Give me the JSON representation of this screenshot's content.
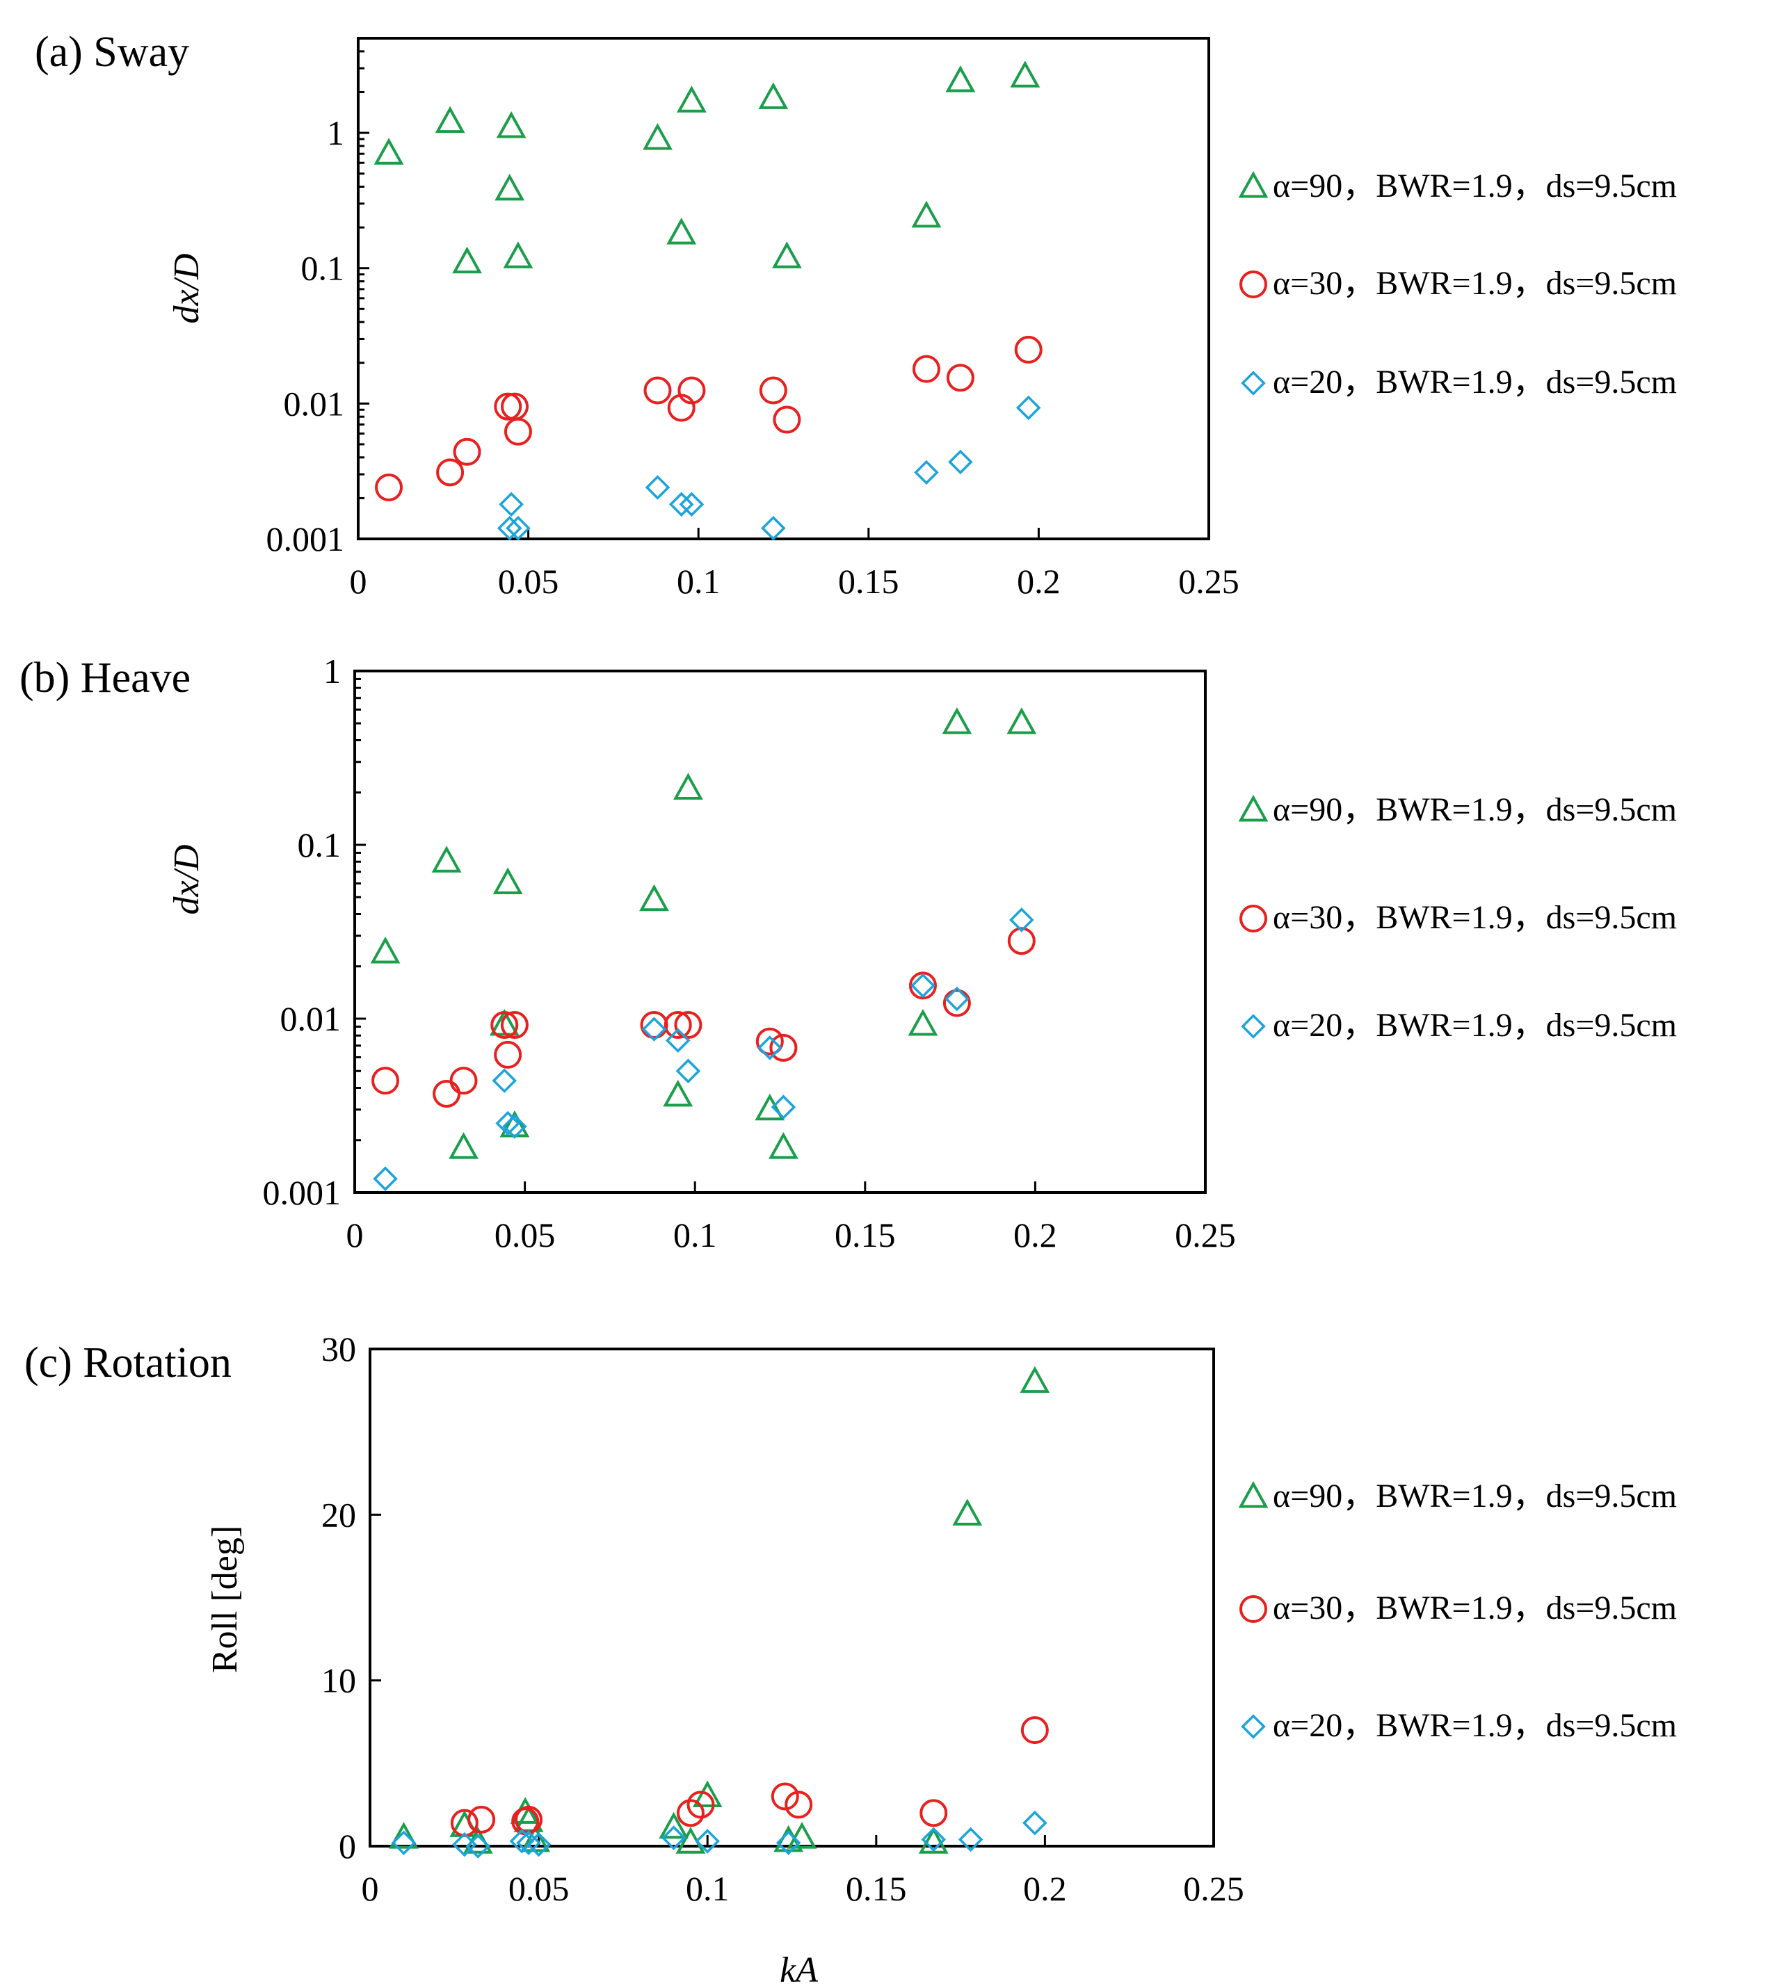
{
  "chart_data": [
    {
      "type": "scatter",
      "title": "(a) Sway",
      "xlabel": "",
      "ylabel": "dx/D",
      "yscale": "log",
      "xlim": [
        0,
        0.25
      ],
      "ylim": [
        0.001,
        5
      ],
      "x_ticks": [
        "0",
        "0.05",
        "0.1",
        "0.15",
        "0.2",
        "0.25"
      ],
      "y_ticks": [
        "0.001",
        "0.01",
        "0.1",
        "1"
      ],
      "series": [
        {
          "name": "α=90，BWR=1.9，ds=9.5cm",
          "marker": "triangle",
          "color": "#1a9e4a",
          "x": [
            0.009,
            0.027,
            0.045,
            0.0445,
            0.032,
            0.047,
            0.088,
            0.098,
            0.095,
            0.122,
            0.126,
            0.177,
            0.196,
            0.167
          ],
          "y": [
            0.7,
            1.2,
            1.1,
            0.38,
            0.11,
            0.12,
            0.9,
            1.7,
            0.18,
            1.8,
            0.12,
            2.4,
            2.6,
            0.24
          ]
        },
        {
          "name": "α=30，BWR=1.9，ds=9.5cm",
          "marker": "circle",
          "color": "#e8201f",
          "x": [
            0.009,
            0.027,
            0.032,
            0.044,
            0.046,
            0.047,
            0.088,
            0.095,
            0.098,
            0.122,
            0.126,
            0.167,
            0.177,
            0.197
          ],
          "y": [
            0.0024,
            0.0031,
            0.0044,
            0.0095,
            0.0095,
            0.0062,
            0.0125,
            0.0093,
            0.0125,
            0.0125,
            0.0076,
            0.018,
            0.0155,
            0.025
          ]
        },
        {
          "name": "α=20，BWR=1.9，ds=9.5cm",
          "marker": "diamond",
          "color": "#1ba4dc",
          "x": [
            0.045,
            0.0445,
            0.047,
            0.088,
            0.095,
            0.098,
            0.122,
            0.167,
            0.177,
            0.197
          ],
          "y": [
            0.0018,
            0.0012,
            0.0012,
            0.0024,
            0.0018,
            0.0018,
            0.0012,
            0.0031,
            0.0037,
            0.0093
          ]
        }
      ]
    },
    {
      "type": "scatter",
      "title": "(b) Heave",
      "xlabel": "",
      "ylabel": "dx/D",
      "yscale": "log",
      "xlim": [
        0,
        0.25
      ],
      "ylim": [
        0.001,
        1
      ],
      "x_ticks": [
        "0",
        "0.05",
        "0.1",
        "0.15",
        "0.2",
        "0.25"
      ],
      "y_ticks": [
        "0.001",
        "0.01",
        "0.1",
        "1"
      ],
      "series": [
        {
          "name": "α=90，BWR=1.9，ds=9.5cm",
          "marker": "triangle",
          "color": "#1a9e4a",
          "x": [
            0.009,
            0.027,
            0.045,
            0.044,
            0.032,
            0.047,
            0.088,
            0.098,
            0.095,
            0.122,
            0.126,
            0.167,
            0.177,
            0.196
          ],
          "y": [
            0.024,
            0.08,
            0.06,
            0.0092,
            0.0018,
            0.0024,
            0.048,
            0.21,
            0.0036,
            0.003,
            0.0018,
            0.0092,
            0.5,
            0.5
          ]
        },
        {
          "name": "α=30，BWR=1.9，ds=9.5cm",
          "marker": "circle",
          "color": "#e8201f",
          "x": [
            0.009,
            0.027,
            0.032,
            0.044,
            0.045,
            0.047,
            0.088,
            0.095,
            0.098,
            0.122,
            0.126,
            0.167,
            0.177,
            0.196
          ],
          "y": [
            0.0044,
            0.0037,
            0.0044,
            0.0092,
            0.0062,
            0.0092,
            0.0092,
            0.0092,
            0.0092,
            0.0074,
            0.0068,
            0.0155,
            0.0123,
            0.028
          ]
        },
        {
          "name": "α=20，BWR=1.9，ds=9.5cm",
          "marker": "diamond",
          "color": "#1ba4dc",
          "x": [
            0.009,
            0.044,
            0.045,
            0.047,
            0.088,
            0.095,
            0.098,
            0.122,
            0.126,
            0.167,
            0.177,
            0.196
          ],
          "y": [
            0.0012,
            0.0044,
            0.0025,
            0.0024,
            0.0087,
            0.0075,
            0.005,
            0.0068,
            0.0031,
            0.0155,
            0.013,
            0.037
          ]
        }
      ]
    },
    {
      "type": "scatter",
      "title": "(c) Rotation",
      "xlabel": "kA",
      "ylabel": "Roll [deg]",
      "yscale": "linear",
      "xlim": [
        0,
        0.25
      ],
      "ylim": [
        0,
        30
      ],
      "x_ticks": [
        "0",
        "0.05",
        "0.1",
        "0.15",
        "0.2",
        "0.25"
      ],
      "y_ticks": [
        "0",
        "10",
        "20",
        "30"
      ],
      "series": [
        {
          "name": "α=90，BWR=1.9，ds=9.5cm",
          "marker": "triangle",
          "color": "#1a9e4a",
          "x": [
            0.01,
            0.028,
            0.032,
            0.046,
            0.047,
            0.049,
            0.09,
            0.095,
            0.1,
            0.124,
            0.128,
            0.167,
            0.177,
            0.197
          ],
          "y": [
            0.5,
            1.2,
            0.2,
            2.0,
            1.5,
            0.3,
            1.1,
            0.2,
            3.0,
            0.3,
            0.5,
            0.2,
            20,
            28
          ]
        },
        {
          "name": "α=30，BWR=1.9，ds=9.5cm",
          "marker": "circle",
          "color": "#e8201f",
          "x": [
            0.028,
            0.033,
            0.046,
            0.047,
            0.095,
            0.098,
            0.123,
            0.127,
            0.167,
            0.197
          ],
          "y": [
            1.4,
            1.6,
            1.5,
            1.6,
            2.0,
            2.5,
            3.0,
            2.5,
            2.0,
            7.0
          ]
        },
        {
          "name": "α=20，BWR=1.9，ds=9.5cm",
          "marker": "diamond",
          "color": "#1ba4dc",
          "x": [
            0.01,
            0.028,
            0.032,
            0.045,
            0.047,
            0.05,
            0.09,
            0.1,
            0.124,
            0.167,
            0.178,
            0.197
          ],
          "y": [
            0.2,
            0.1,
            0.0,
            0.3,
            0.2,
            0.1,
            0.5,
            0.3,
            0.2,
            0.4,
            0.4,
            1.4
          ]
        }
      ]
    }
  ]
}
